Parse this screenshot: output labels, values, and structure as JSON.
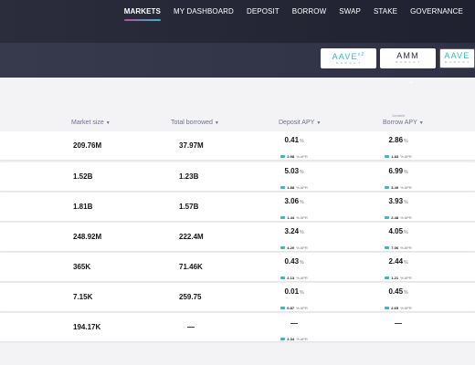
{
  "nav": {
    "items": [
      "MARKETS",
      "MY DASHBOARD",
      "DEPOSIT",
      "BORROW",
      "SWAP",
      "STAKE",
      "GOVERNANCE"
    ]
  },
  "markets_switcher": [
    {
      "logo": "AAVE",
      "version": "v2",
      "sub": "M A R K E T"
    },
    {
      "logo": "AMM",
      "sub": "M A R K E T"
    },
    {
      "logo": "AAVE",
      "sub": "M A R K E T"
    }
  ],
  "table": {
    "headers": {
      "market_size": "Market size",
      "total_borrowed": "Total borrowed",
      "deposit_apy": "Deposit APY",
      "borrow_apy": "Borrow APY",
      "borrow_sub": "Variable"
    },
    "rows": [
      {
        "market_size": "209.76M",
        "total_borrowed": "37.97M",
        "deposit_apy": "0.41",
        "deposit_reward": "2.98",
        "borrow_apy": "2.86",
        "borrow_reward": "1.83"
      },
      {
        "market_size": "1.52B",
        "total_borrowed": "1.23B",
        "deposit_apy": "5.03",
        "deposit_reward": "1.88",
        "borrow_apy": "6.99",
        "borrow_reward": "3.49"
      },
      {
        "market_size": "1.81B",
        "total_borrowed": "1.57B",
        "deposit_apy": "3.06",
        "deposit_reward": "1.44",
        "borrow_apy": "3.93",
        "borrow_reward": "2.48"
      },
      {
        "market_size": "248.92M",
        "total_borrowed": "222.4M",
        "deposit_apy": "3.24",
        "deposit_reward": "4.20",
        "borrow_apy": "4.05",
        "borrow_reward": "7.06"
      },
      {
        "market_size": "365K",
        "total_borrowed": "71.46K",
        "deposit_apy": "0.43",
        "deposit_reward": "2.13",
        "borrow_apy": "2.44",
        "borrow_reward": "1.21"
      },
      {
        "market_size": "7.15K",
        "total_borrowed": "259.75",
        "deposit_apy": "0.01",
        "deposit_reward": "0.87",
        "borrow_apy": "0.45",
        "borrow_reward": "2.65"
      },
      {
        "market_size": "194.17K",
        "total_borrowed": "—",
        "deposit_apy": "—",
        "deposit_reward": "2.34",
        "borrow_apy": "—",
        "borrow_reward": null
      }
    ],
    "percent_sign": "%",
    "apr_label": "% APR"
  },
  "colors": {
    "accent_purple": "#b6509e",
    "accent_teal": "#2ebac6",
    "header_dark": "#2b2d3c"
  }
}
